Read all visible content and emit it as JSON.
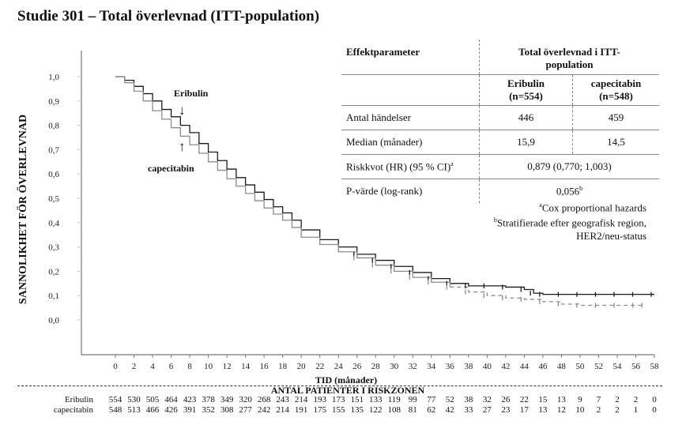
{
  "title": "Studie 301 – Total överlevnad (ITT-population)",
  "chart_data": {
    "type": "line",
    "title": "Studie 301 – Total överlevnad (ITT-population)",
    "xlabel": "TID (månader)",
    "ylabel": "SANNOLIKHET FÖR ÖVERLEVNAD",
    "xlim": [
      0,
      58
    ],
    "ylim": [
      0,
      1
    ],
    "xticks": [
      0,
      2,
      4,
      6,
      8,
      10,
      12,
      14,
      16,
      18,
      20,
      22,
      24,
      26,
      28,
      30,
      32,
      34,
      36,
      38,
      40,
      42,
      44,
      46,
      48,
      50,
      52,
      54,
      56,
      58
    ],
    "yticks": [
      "0,0",
      "0,1",
      "0,2",
      "0,3",
      "0,4",
      "0,5",
      "0,6",
      "0,7",
      "0,8",
      "0,9",
      "1,0"
    ],
    "grid": false,
    "series": [
      {
        "name": "Eribulin",
        "color": "#1a1a1a",
        "style": "solid",
        "x": [
          0,
          1,
          2,
          3,
          4,
          5,
          6,
          7,
          8,
          9,
          10,
          11,
          12,
          13,
          14,
          15,
          16,
          17,
          18,
          19,
          20,
          22,
          24,
          26,
          28,
          30,
          32,
          34,
          36,
          38,
          40,
          42,
          44,
          45,
          46,
          48,
          50,
          52,
          54,
          56,
          58
        ],
        "y": [
          1.0,
          0.985,
          0.96,
          0.93,
          0.9,
          0.865,
          0.835,
          0.8,
          0.77,
          0.725,
          0.69,
          0.655,
          0.62,
          0.585,
          0.555,
          0.525,
          0.495,
          0.465,
          0.44,
          0.41,
          0.37,
          0.33,
          0.3,
          0.27,
          0.245,
          0.22,
          0.195,
          0.17,
          0.15,
          0.14,
          0.14,
          0.135,
          0.125,
          0.11,
          0.105,
          0.105,
          0.105,
          0.105,
          0.105,
          0.105,
          0.105
        ]
      },
      {
        "name": "capecitabin",
        "color": "#8c8c8c",
        "style": "solid-then-dashed",
        "x": [
          0,
          1,
          2,
          3,
          4,
          5,
          6,
          7,
          8,
          9,
          10,
          11,
          12,
          13,
          14,
          15,
          16,
          17,
          18,
          19,
          20,
          22,
          24,
          26,
          28,
          30,
          32,
          34,
          36,
          38,
          40,
          42,
          44,
          46,
          48,
          50,
          52,
          54,
          56,
          57
        ],
        "y": [
          1.0,
          0.975,
          0.94,
          0.9,
          0.86,
          0.825,
          0.79,
          0.755,
          0.72,
          0.685,
          0.65,
          0.615,
          0.58,
          0.55,
          0.52,
          0.49,
          0.46,
          0.435,
          0.41,
          0.38,
          0.34,
          0.31,
          0.28,
          0.255,
          0.225,
          0.2,
          0.175,
          0.155,
          0.135,
          0.115,
          0.1,
          0.09,
          0.085,
          0.075,
          0.065,
          0.06,
          0.06,
          0.06,
          0.06,
          0.06
        ]
      }
    ],
    "annotations": [
      {
        "text": "Eribulin",
        "arrow": "down"
      },
      {
        "text": "capecitabin",
        "arrow": "up"
      }
    ]
  },
  "effect_table": {
    "header": {
      "param": "Effektparameter",
      "group": "Total överlevnad i ITT-population"
    },
    "arms": [
      {
        "name": "Eribulin",
        "n": "(n=554)"
      },
      {
        "name": "capecitabin",
        "n": "(n=548)"
      }
    ],
    "rows": [
      {
        "label": "Antal händelser",
        "eribulin": "446",
        "capecitabin": "459"
      },
      {
        "label": "Median (månader)",
        "eribulin": "15,9",
        "capecitabin": "14,5"
      }
    ],
    "hr": {
      "label": "Riskkvot (HR) (95 % CI)",
      "sup": "a",
      "value": "0,879 (0,770; 1,003)"
    },
    "p": {
      "label": "P-värde (log-rank)",
      "value": "0,056",
      "sup": "b"
    },
    "footnotes": [
      {
        "sup": "a",
        "text": "Cox proportional hazards"
      },
      {
        "sup": "b",
        "text": "Stratifierade efter geografisk region,"
      },
      {
        "sup": "",
        "text": "HER2/neu-status"
      }
    ]
  },
  "risk_table": {
    "title": "ANTAL PATIENTER I RISKZONEN",
    "rows": [
      {
        "label": "Eribulin",
        "values": [
          "554",
          "530",
          "505",
          "464",
          "423",
          "378",
          "349",
          "320",
          "268",
          "243",
          "214",
          "193",
          "173",
          "151",
          "133",
          "119",
          "99",
          "77",
          "52",
          "38",
          "32",
          "26",
          "22",
          "15",
          "13",
          "9",
          "7",
          "2",
          "2",
          "0"
        ]
      },
      {
        "label": "capecitabin",
        "values": [
          "548",
          "513",
          "466",
          "426",
          "391",
          "352",
          "308",
          "277",
          "242",
          "214",
          "191",
          "175",
          "155",
          "135",
          "122",
          "108",
          "81",
          "62",
          "42",
          "33",
          "27",
          "23",
          "17",
          "13",
          "12",
          "10",
          "2",
          "2",
          "1",
          "0"
        ]
      }
    ]
  }
}
